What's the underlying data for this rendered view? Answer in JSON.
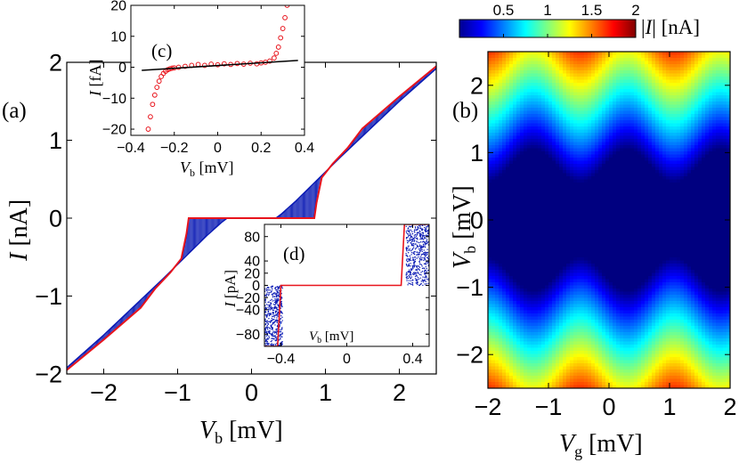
{
  "panel_labels": {
    "a": "(a)",
    "b": "(b)",
    "c": "(c)",
    "d": "(d)"
  },
  "chart_data": [
    {
      "id": "a",
      "type": "line",
      "xlabel": "V_b [mV]",
      "ylabel": "I [nA]",
      "xlim": [
        -2.5,
        2.5
      ],
      "ylim": [
        -2,
        2
      ],
      "xticks": [
        -2,
        -1,
        0,
        1,
        2
      ],
      "yticks": [
        -2,
        -1,
        0,
        1,
        2
      ],
      "series": [
        {
          "color": "#e8141c",
          "style": "line",
          "x": [
            -2.5,
            -2.0,
            -1.5,
            -1.3,
            -1.1,
            -0.95,
            -0.88,
            -0.85,
            -0.4,
            0.4,
            0.85,
            0.88,
            0.95,
            1.1,
            1.3,
            1.5,
            2.0,
            2.5
          ],
          "y": [
            -1.95,
            -1.56,
            -1.15,
            -0.9,
            -0.7,
            -0.52,
            -0.2,
            0.0,
            0.0,
            0.0,
            0.0,
            0.2,
            0.52,
            0.7,
            0.9,
            1.15,
            1.56,
            1.95
          ]
        },
        {
          "color": "#0a1ab4",
          "style": "hatched-band",
          "x": [
            -2.5,
            -2.0,
            -1.5,
            -1.2,
            -0.9,
            -0.6,
            -0.4,
            -0.33,
            0.33,
            0.4,
            0.6,
            0.9,
            1.2,
            1.5,
            2.0,
            2.5
          ],
          "y": [
            -1.92,
            -1.5,
            -1.05,
            -0.78,
            -0.5,
            -0.22,
            -0.05,
            0.0,
            0.0,
            0.05,
            0.22,
            0.5,
            0.78,
            1.05,
            1.5,
            1.92
          ]
        }
      ]
    },
    {
      "id": "b",
      "type": "heatmap",
      "xlabel": "V_g [mV]",
      "ylabel": "V_b [mV]",
      "xlim": [
        -2,
        2
      ],
      "ylim": [
        -2.5,
        2.5
      ],
      "xticks": [
        -2,
        -1,
        0,
        1,
        2
      ],
      "yticks": [
        -2,
        -1,
        0,
        1,
        2
      ],
      "colorbar": {
        "label": "|I| [nA]",
        "ticks": [
          "0.5",
          "1",
          "1.5",
          "2"
        ],
        "range": [
          0,
          2
        ],
        "colormap": "jet"
      }
    },
    {
      "id": "c",
      "type": "scatter",
      "xlabel": "V_b [mV]",
      "ylabel": "I [fA]",
      "xlim": [
        -0.4,
        0.4
      ],
      "ylim": [
        -22,
        20
      ],
      "xticks": [
        "-0.4",
        "-0.2",
        "0",
        "0.2",
        "0.4"
      ],
      "yticks": [
        "-20",
        "-10",
        "0",
        "10",
        "20"
      ],
      "series": [
        {
          "color": "#e8141c",
          "marker": "circle",
          "x": [
            -0.32,
            -0.31,
            -0.3,
            -0.29,
            -0.28,
            -0.27,
            -0.26,
            -0.25,
            -0.24,
            -0.23,
            -0.22,
            -0.21,
            -0.2,
            -0.18,
            -0.15,
            -0.12,
            -0.09,
            -0.06,
            -0.03,
            0.0,
            0.03,
            0.06,
            0.09,
            0.12,
            0.15,
            0.18,
            0.2,
            0.22,
            0.24,
            0.26,
            0.27,
            0.28,
            0.29,
            0.3,
            0.31,
            0.32
          ],
          "y": [
            -20,
            -16,
            -12,
            -9,
            -6.5,
            -4.5,
            -3,
            -2,
            -1.3,
            -0.8,
            -0.5,
            -0.3,
            -0.2,
            0,
            0.3,
            0.6,
            0.9,
            0.6,
            1.0,
            0.8,
            1.1,
            0.9,
            1.2,
            1.0,
            1.3,
            1.1,
            1.4,
            1.6,
            2.0,
            3.0,
            4.5,
            6.5,
            9.5,
            12.5,
            16,
            20
          ]
        },
        {
          "color": "#000000",
          "style": "line",
          "x": [
            -0.35,
            0.37
          ],
          "y": [
            -1.0,
            2.2
          ]
        }
      ]
    },
    {
      "id": "d",
      "type": "scatter",
      "xlabel": "V_b [mV]",
      "ylabel": "I [pA]",
      "xlim": [
        -0.5,
        0.5
      ],
      "ylim": [
        -100,
        100
      ],
      "xticks": [
        "-0.4",
        "0",
        "0.4"
      ],
      "yticks": [
        "80",
        "40",
        "20",
        "0",
        "-20",
        "-40",
        "-80"
      ],
      "series": [
        {
          "color": "#e8141c",
          "style": "line",
          "x": [
            -0.5,
            -0.42,
            -0.4,
            0.33,
            0.35,
            0.5
          ],
          "y": [
            -100,
            -100,
            0,
            0,
            100,
            100
          ]
        },
        {
          "color": "#0a1ab4",
          "style": "scatter-band-negative",
          "xrange": [
            -0.5,
            -0.39
          ],
          "yrange": [
            -100,
            0
          ]
        },
        {
          "color": "#0a1ab4",
          "style": "scatter-band-positive",
          "xrange": [
            0.36,
            0.5
          ],
          "yrange": [
            0,
            100
          ]
        }
      ]
    }
  ]
}
